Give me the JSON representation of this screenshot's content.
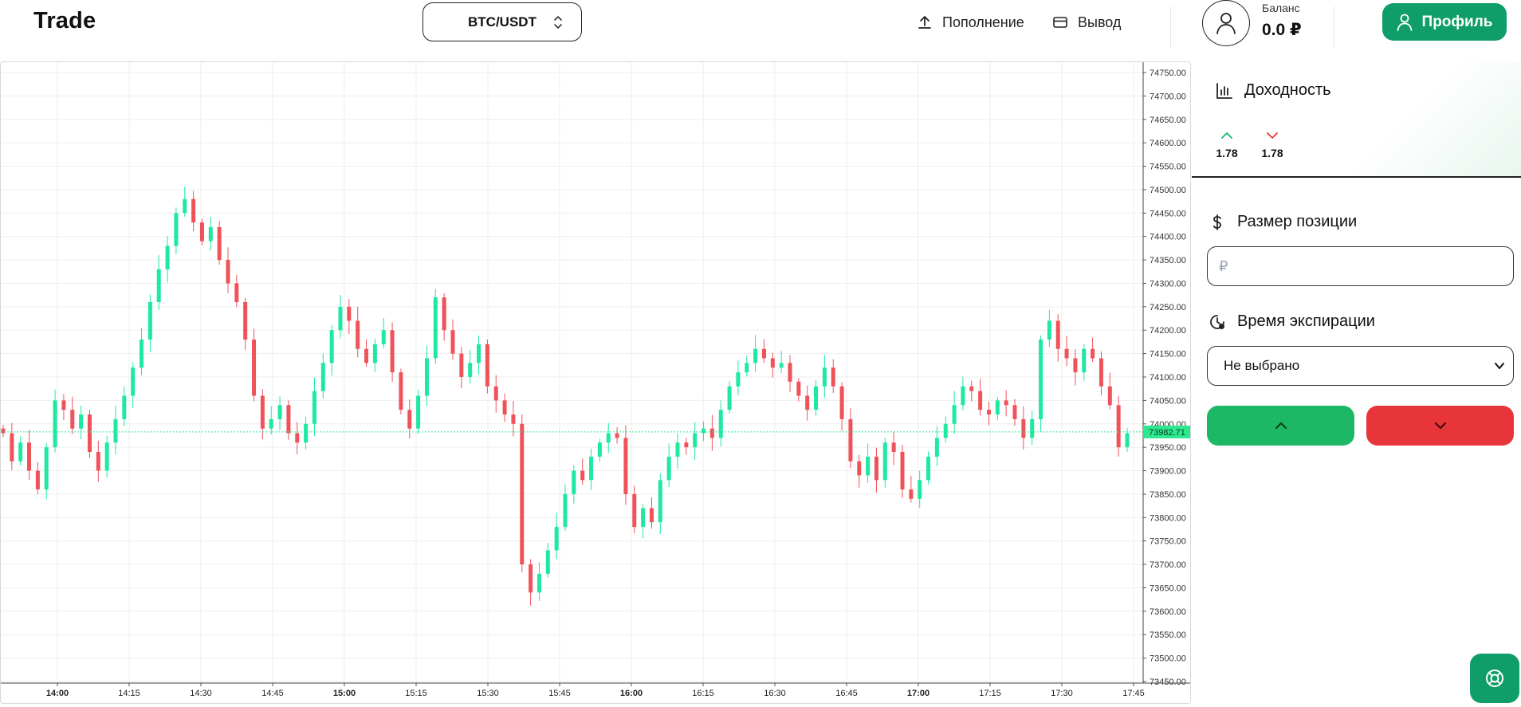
{
  "header": {
    "logo": "Trade",
    "pair": "BTC/USDT",
    "deposit_label": "Пополнение",
    "withdraw_label": "Вывод",
    "balance_label": "Баланс",
    "balance_value": "0.0 ₽",
    "profile_label": "Профиль"
  },
  "panel": {
    "yield_title": "Доходность",
    "yield_up": "1.78",
    "yield_down": "1.78",
    "position_title": "Размер позиции",
    "position_placeholder": "₽",
    "expiration_title": "Время экспирации",
    "expiration_value": "Не выбрано"
  },
  "colors": {
    "accent": "#0f9d69",
    "up": "#1de9a0",
    "down": "#f0525a",
    "current_price_line": "#2ee88e"
  },
  "icons": {
    "deposit": "upload-icon",
    "withdraw": "card-icon",
    "avatar": "user-icon",
    "yield": "bar-chart-icon",
    "position": "dollar-icon",
    "expiration": "clock-icon",
    "up": "chevron-up-icon",
    "down": "chevron-down-icon",
    "support": "lifebuoy-icon"
  },
  "chart_data": {
    "type": "candlestick",
    "x_labels": [
      "14:00",
      "14:15",
      "14:30",
      "14:45",
      "15:00",
      "15:15",
      "15:30",
      "15:45",
      "16:00",
      "16:15",
      "16:30",
      "16:45",
      "17:00",
      "17:15",
      "17:30",
      "17:45"
    ],
    "y_labels": [
      "74750.00",
      "74700.00",
      "74650.00",
      "74600.00",
      "74550.00",
      "74500.00",
      "74450.00",
      "74400.00",
      "74350.00",
      "74300.00",
      "74250.00",
      "74200.00",
      "74150.00",
      "74100.00",
      "74050.00",
      "74000.00",
      "73950.00",
      "73900.00",
      "73850.00",
      "73800.00",
      "73750.00",
      "73700.00",
      "73650.00",
      "73600.00",
      "73550.00",
      "73500.00",
      "73450.00"
    ],
    "ylim": [
      73450,
      74750
    ],
    "current_price": "73982.71",
    "grid": true,
    "close_series": [
      73980,
      73920,
      73960,
      73900,
      73860,
      73950,
      74050,
      74030,
      73990,
      74020,
      73940,
      73900,
      73960,
      74010,
      74060,
      74120,
      74180,
      74260,
      74330,
      74380,
      74450,
      74480,
      74430,
      74390,
      74420,
      74350,
      74300,
      74260,
      74180,
      74060,
      73990,
      74010,
      74040,
      73980,
      73960,
      74000,
      74070,
      74130,
      74200,
      74250,
      74220,
      74160,
      74130,
      74170,
      74200,
      74110,
      74030,
      73990,
      74060,
      74140,
      74270,
      74200,
      74150,
      74100,
      74130,
      74170,
      74080,
      74050,
      74020,
      74000,
      73700,
      73640,
      73680,
      73730,
      73780,
      73850,
      73900,
      73880,
      73930,
      73960,
      73980,
      73970,
      73850,
      73780,
      73820,
      73790,
      73880,
      73930,
      73960,
      73950,
      73980,
      73990,
      73970,
      74030,
      74080,
      74110,
      74130,
      74160,
      74140,
      74120,
      74130,
      74090,
      74060,
      74030,
      74080,
      74120,
      74080,
      74010,
      73920,
      73890,
      73930,
      73880,
      73960,
      73940,
      73860,
      73840,
      73880,
      73930,
      73970,
      74000,
      74040,
      74080,
      74070,
      74030,
      74020,
      74050,
      74040,
      74010,
      73970,
      74010,
      74180,
      74220,
      74160,
      74140,
      74110,
      74160,
      74140,
      74080,
      74040,
      73950,
      73980
    ]
  }
}
